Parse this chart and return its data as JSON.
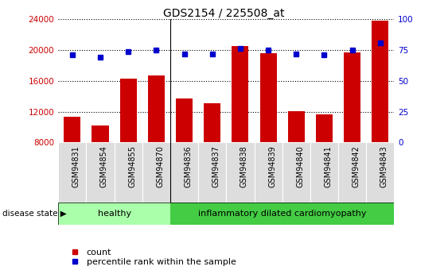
{
  "title": "GDS2154 / 225508_at",
  "samples": [
    "GSM94831",
    "GSM94854",
    "GSM94855",
    "GSM94870",
    "GSM94836",
    "GSM94837",
    "GSM94838",
    "GSM94839",
    "GSM94840",
    "GSM94841",
    "GSM94842",
    "GSM94843"
  ],
  "counts": [
    11300,
    10200,
    16300,
    16700,
    13700,
    13100,
    20500,
    19600,
    12100,
    11600,
    19700,
    23800
  ],
  "percentiles": [
    71,
    69,
    74,
    75,
    72,
    72,
    76,
    75,
    72,
    71,
    75,
    81
  ],
  "bar_color": "#cc0000",
  "dot_color": "#0000cc",
  "ylim_left": [
    8000,
    24000
  ],
  "ylim_right": [
    0,
    100
  ],
  "yticks_left": [
    8000,
    12000,
    16000,
    20000,
    24000
  ],
  "yticks_right": [
    0,
    25,
    50,
    75,
    100
  ],
  "healthy_count": 4,
  "healthy_label": "healthy",
  "disease_label": "inflammatory dilated cardiomyopathy",
  "disease_state_label": "disease state",
  "healthy_color": "#aaffaa",
  "disease_color": "#44cc44",
  "legend_count": "count",
  "legend_percentile": "percentile rank within the sample",
  "bar_color_label": "#cc0000",
  "dot_color_label": "#0000cc",
  "tick_label_bg": "#dddddd"
}
